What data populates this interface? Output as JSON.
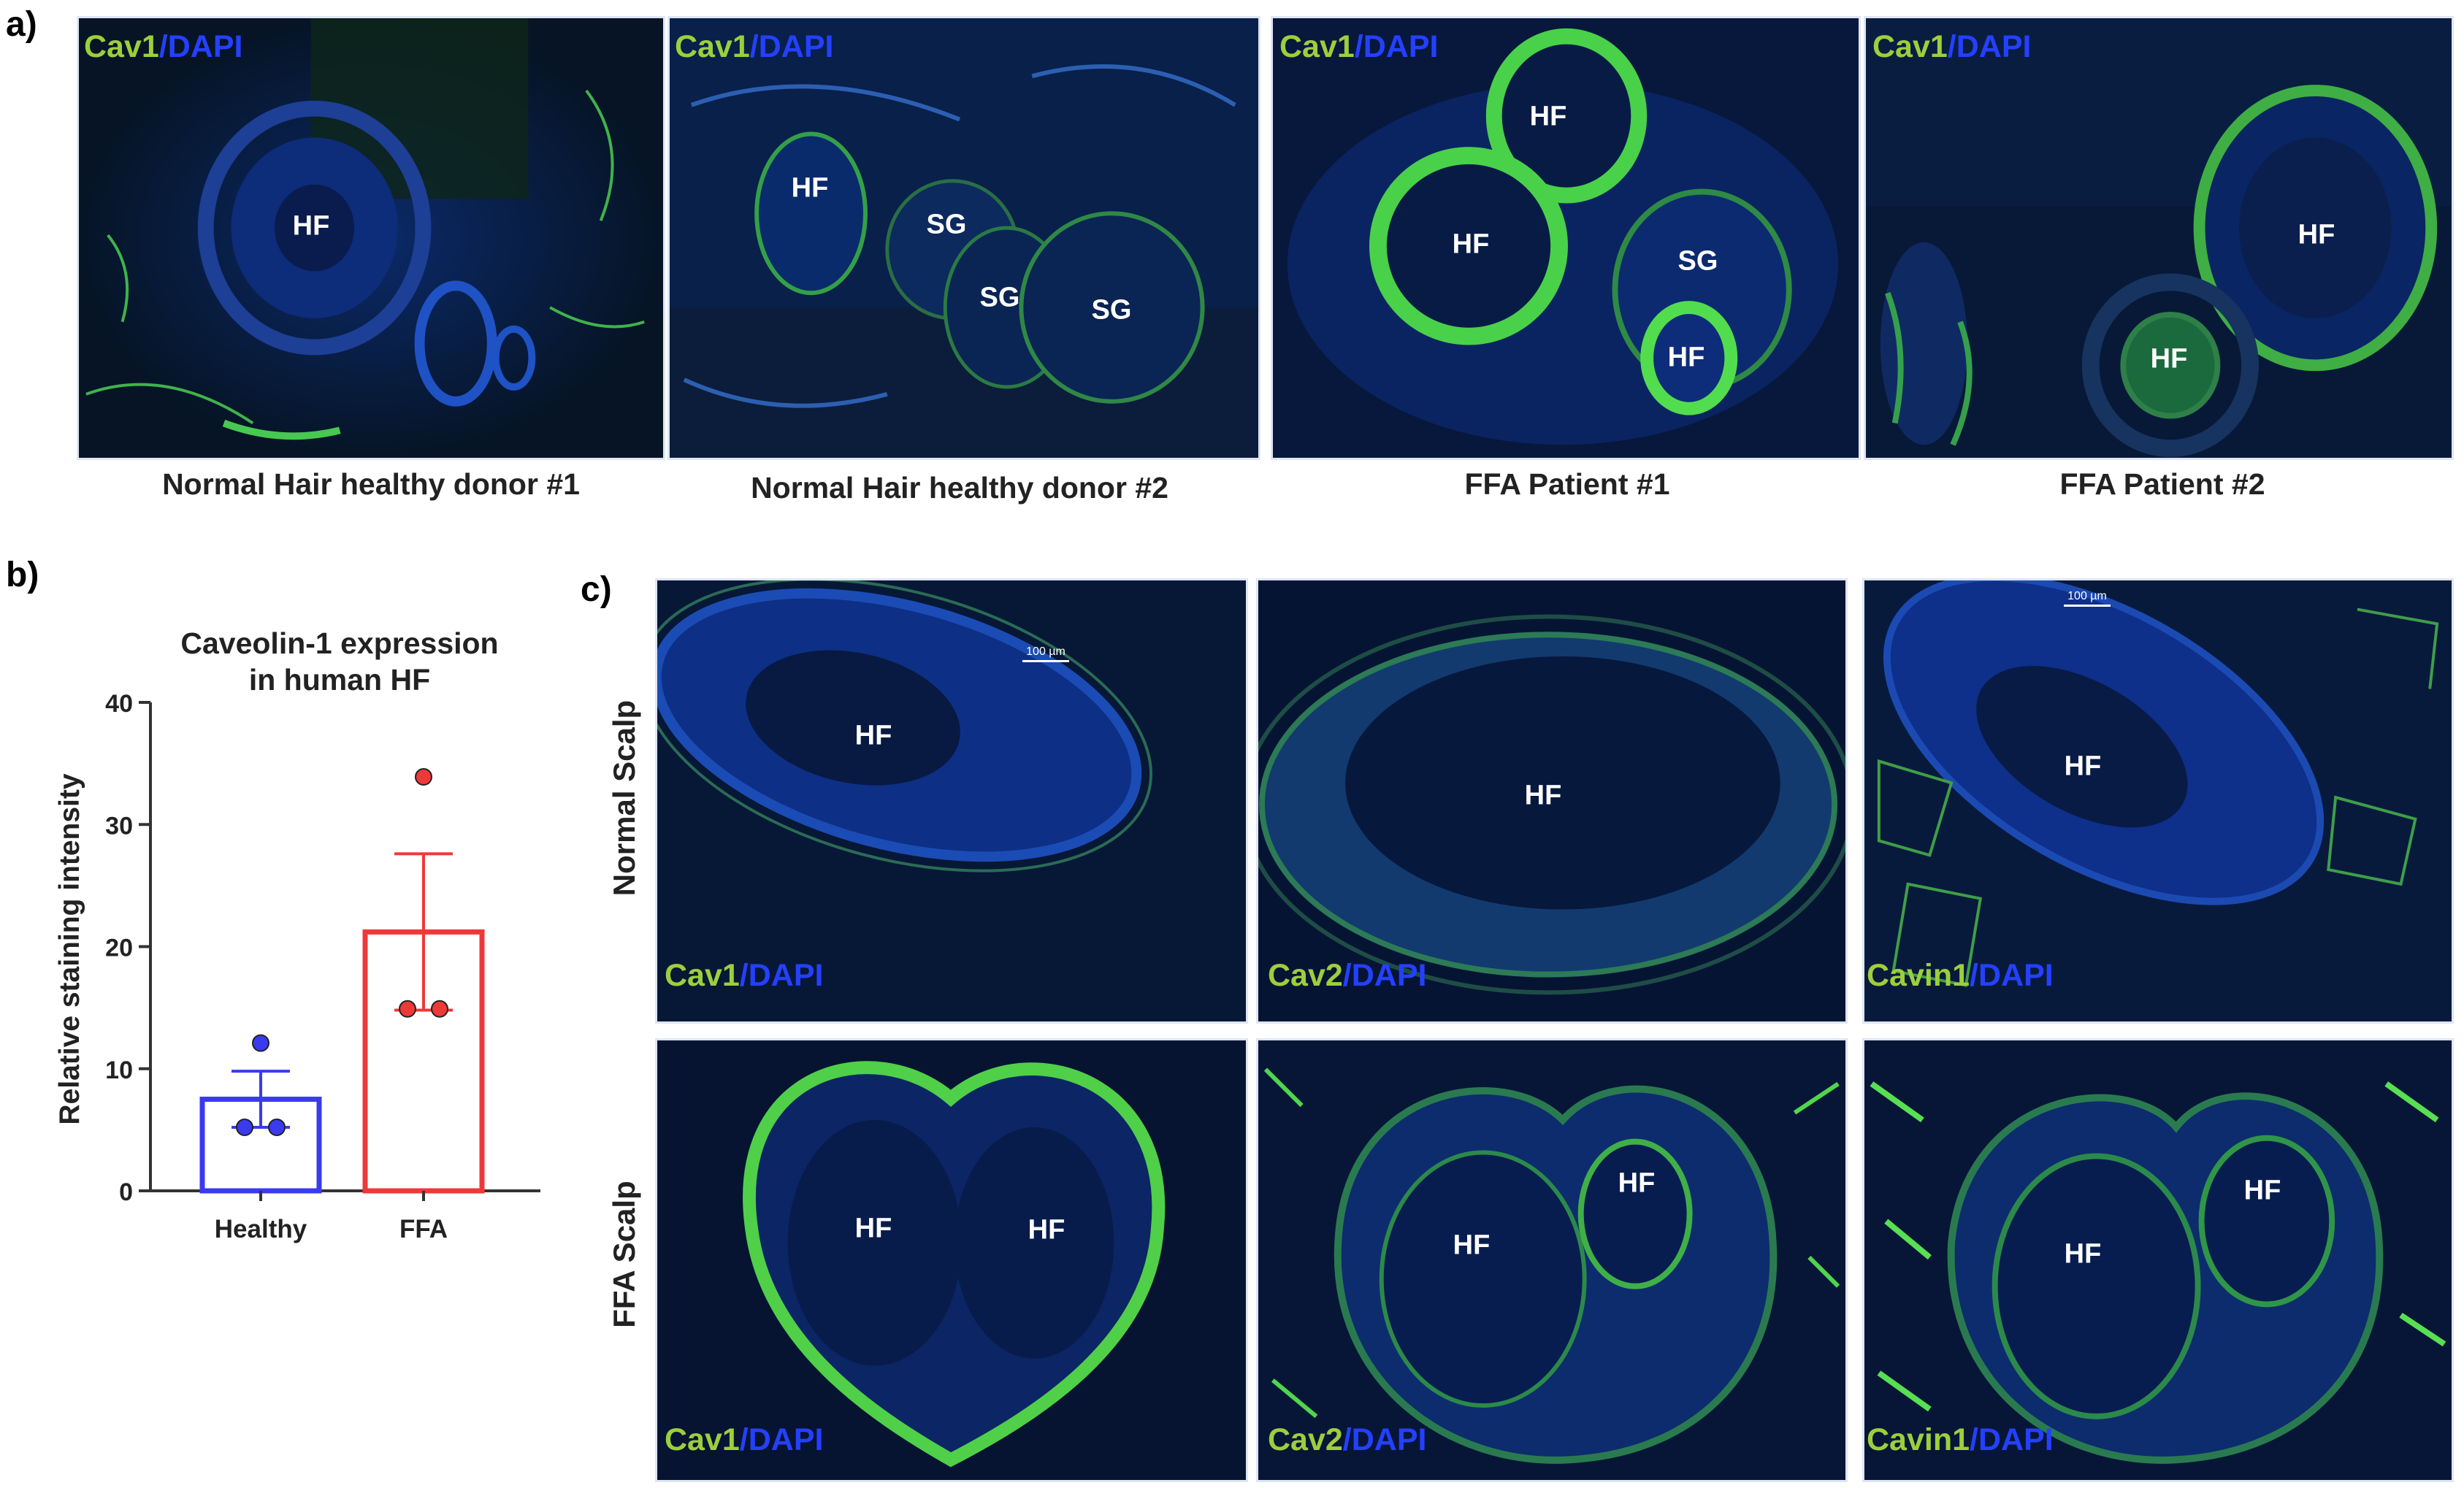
{
  "panel_labels": {
    "a": "a)",
    "b": "b)",
    "c": "c)"
  },
  "stain": {
    "cav1": "Cav1",
    "cav2": "Cav2",
    "cavin1": "Cavin1",
    "sep": "/",
    "dapi": "DAPI"
  },
  "regions": {
    "hf": "HF",
    "sg": "SG"
  },
  "panel_a_captions": [
    "Normal Hair healthy donor #1",
    "Normal Hair healthy donor #2",
    "FFA Patient #1",
    "FFA Patient #2"
  ],
  "panel_c_rows": [
    "Normal Scalp",
    "FFA Scalp"
  ],
  "scale_bar": "100 µm",
  "colors": {
    "marker": "#9ccf3c",
    "dapi": "#2440ff",
    "healthy": "#3a3aef",
    "ffa": "#ef3838"
  },
  "chart_data": {
    "type": "bar",
    "title": "Caveolin-1 expression\nin human HF",
    "title_lines": [
      "Caveolin-1 expression",
      "in human HF"
    ],
    "ylabel": "Relative staining intensity",
    "xlabel": "",
    "ylim": [
      0,
      40
    ],
    "yticks": [
      0,
      10,
      20,
      30,
      40
    ],
    "categories": [
      "Healthy",
      "FFA"
    ],
    "values": [
      7.5,
      21.2
    ],
    "error_sem": [
      2.3,
      6.4
    ],
    "points": [
      [
        12.1,
        5.2,
        5.2
      ],
      [
        33.9,
        14.9,
        14.9
      ]
    ]
  }
}
